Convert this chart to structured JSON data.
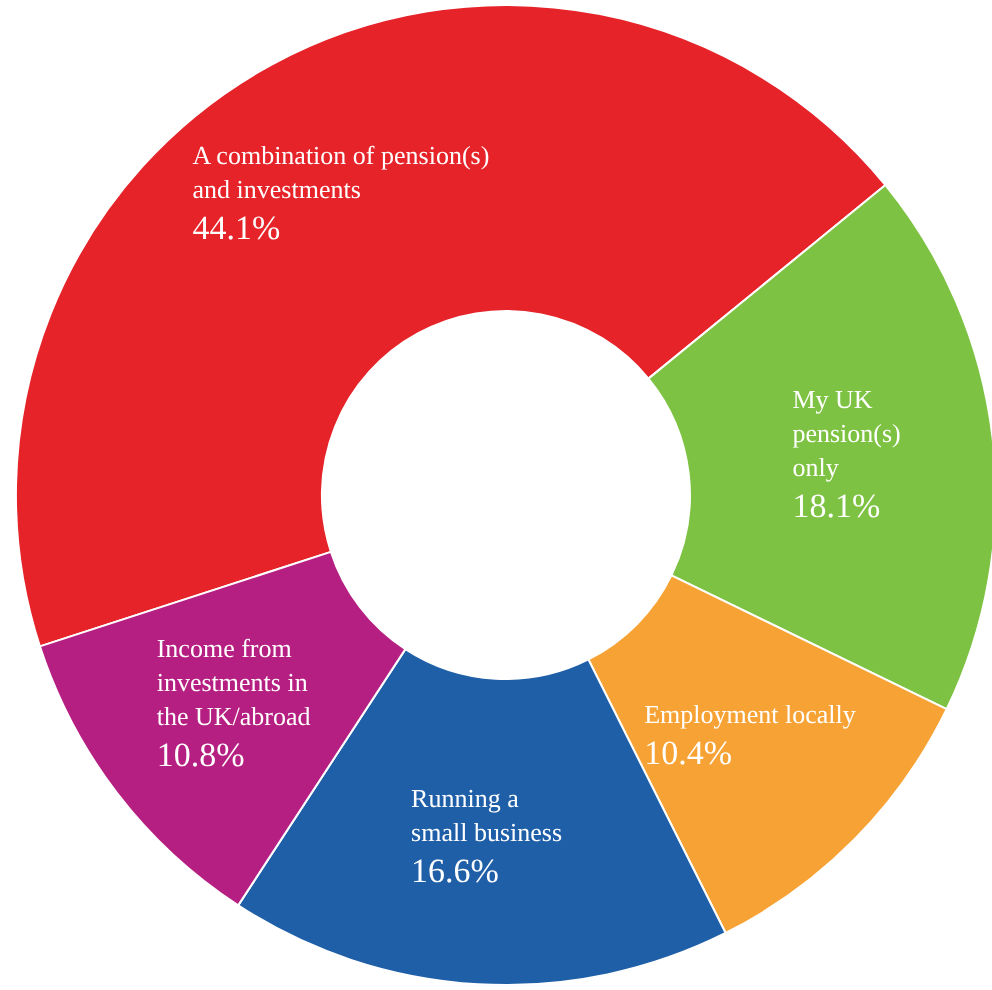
{
  "chart_data": {
    "type": "donut",
    "categories": [
      "A combination of pension(s) and investments",
      "My UK pension(s) only",
      "Employment locally",
      "Running a small business",
      "Income from investments in the UK/abroad"
    ],
    "values": [
      44.1,
      18.1,
      10.4,
      16.6,
      10.8
    ],
    "colors": [
      "#e52329",
      "#7dc242",
      "#f7a234",
      "#1f5fa8",
      "#b61f82"
    ],
    "value_labels": [
      "44.1%",
      "18.1%",
      "10.4%",
      "16.6%",
      "10.8%"
    ],
    "legend": false
  }
}
